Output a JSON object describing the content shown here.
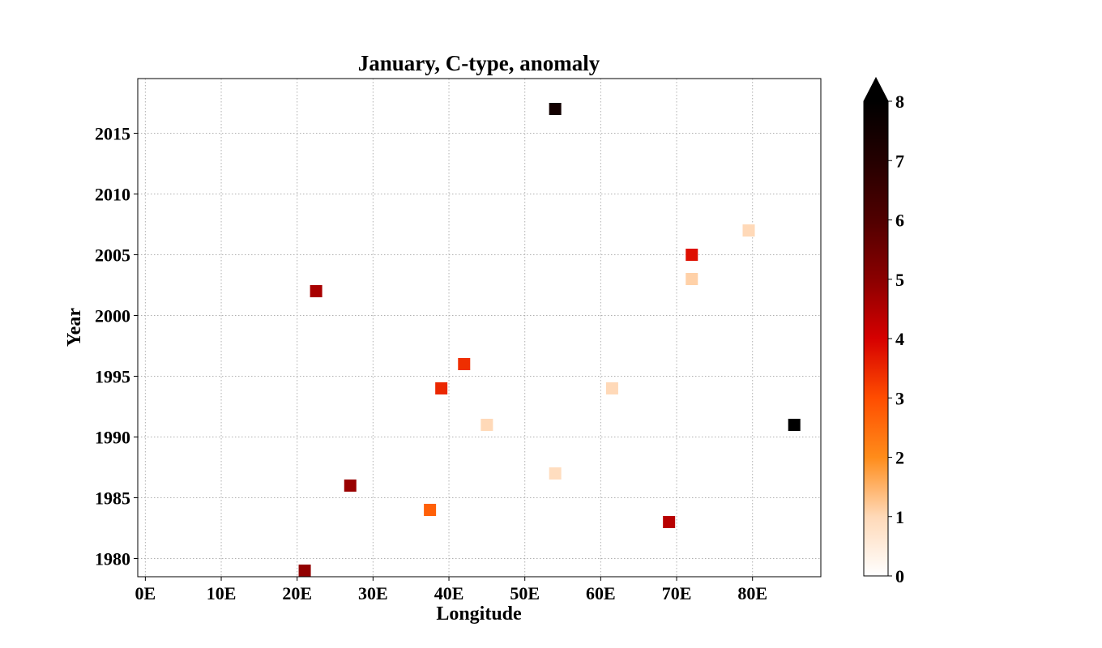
{
  "chart_data": {
    "type": "scatter",
    "title": "January, C-type, anomaly",
    "xlabel": "Longitude",
    "ylabel": "Year",
    "xlim": [
      -1,
      89
    ],
    "ylim": [
      1978.5,
      2019.5
    ],
    "xticks": [
      0,
      10,
      20,
      30,
      40,
      50,
      60,
      70,
      80
    ],
    "xtick_labels": [
      "0E",
      "10E",
      "20E",
      "30E",
      "40E",
      "50E",
      "60E",
      "70E",
      "80E"
    ],
    "yticks": [
      1980,
      1985,
      1990,
      1995,
      2000,
      2005,
      2010,
      2015
    ],
    "ytick_labels": [
      "1980",
      "1985",
      "1990",
      "1995",
      "2000",
      "2005",
      "2010",
      "2015"
    ],
    "grid": true,
    "marker": "square",
    "colormap": "gist_heat_r",
    "colorbar": {
      "min": 0,
      "max": 8,
      "extend": "max",
      "ticks": [
        0,
        1,
        2,
        3,
        4,
        5,
        6,
        7,
        8
      ],
      "tick_labels": [
        "0",
        "1",
        "2",
        "3",
        "4",
        "5",
        "6",
        "7",
        "8"
      ],
      "colors": [
        "#ffffff",
        "#ffd9b8",
        "#ff8c1a",
        "#ff4d00",
        "#d60000",
        "#8a0000",
        "#500000",
        "#240000",
        "#000000"
      ]
    },
    "points": [
      {
        "lon": 54.0,
        "year": 2017,
        "value": 7.5
      },
      {
        "lon": 79.5,
        "year": 2007,
        "value": 1.0
      },
      {
        "lon": 72.0,
        "year": 2005,
        "value": 3.8
      },
      {
        "lon": 72.0,
        "year": 2003,
        "value": 1.1
      },
      {
        "lon": 22.5,
        "year": 2002,
        "value": 4.6
      },
      {
        "lon": 42.0,
        "year": 1996,
        "value": 3.4
      },
      {
        "lon": 39.0,
        "year": 1994,
        "value": 3.5
      },
      {
        "lon": 61.5,
        "year": 1994,
        "value": 1.0
      },
      {
        "lon": 45.0,
        "year": 1991,
        "value": 1.0
      },
      {
        "lon": 85.5,
        "year": 1991,
        "value": 8.2
      },
      {
        "lon": 54.0,
        "year": 1987,
        "value": 0.9
      },
      {
        "lon": 27.0,
        "year": 1986,
        "value": 4.8
      },
      {
        "lon": 37.5,
        "year": 1984,
        "value": 2.7
      },
      {
        "lon": 69.0,
        "year": 1983,
        "value": 4.4
      },
      {
        "lon": 21.0,
        "year": 1979,
        "value": 4.9
      }
    ]
  }
}
